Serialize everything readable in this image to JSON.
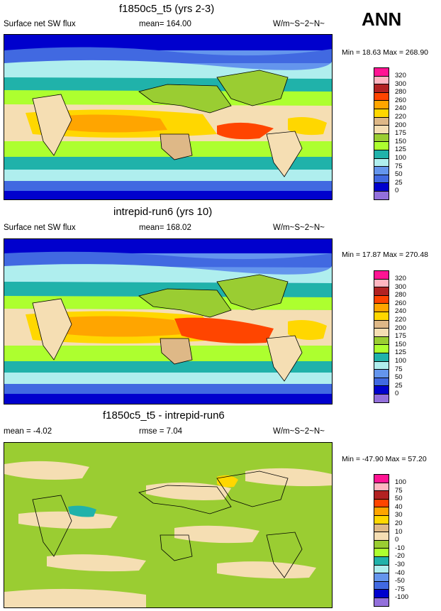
{
  "season": "ANN",
  "panels": [
    {
      "title": "f1850c5_t5 (yrs 2-3)",
      "left_label": "Surface net SW flux",
      "mid_label": "mean= 164.00",
      "units": "W/m~S~2~N~",
      "minmax": "Min = 18.63 Max = 268.90",
      "levels": [
        "320",
        "300",
        "280",
        "260",
        "240",
        "220",
        "200",
        "175",
        "150",
        "125",
        "100",
        "75",
        "50",
        "25",
        "0"
      ]
    },
    {
      "title": "intrepid-run6 (yrs 10)",
      "left_label": "Surface net SW flux",
      "mid_label": "mean= 168.02",
      "units": "W/m~S~2~N~",
      "minmax": "Min = 17.87 Max = 270.48",
      "levels": [
        "320",
        "300",
        "280",
        "260",
        "240",
        "220",
        "200",
        "175",
        "150",
        "125",
        "100",
        "75",
        "50",
        "25",
        "0"
      ]
    },
    {
      "title": "f1850c5_t5 - intrepid-run6",
      "left_label": "mean = -4.02",
      "mid_label": "rmse = 7.04",
      "units": "W/m~S~2~N~",
      "minmax": "Min = -47.90 Max = 57.20",
      "levels": [
        "100",
        "75",
        "50",
        "40",
        "30",
        "20",
        "10",
        "0",
        "-10",
        "-20",
        "-30",
        "-40",
        "-50",
        "-75",
        "-100"
      ]
    }
  ],
  "colors": {
    "scale": [
      "#ff1493",
      "#ffb6c1",
      "#b22222",
      "#ff4500",
      "#ffa500",
      "#ffd700",
      "#deb887",
      "#f5deb3",
      "#9acd32",
      "#adff2f",
      "#20b2aa",
      "#afeeee",
      "#6495ed",
      "#4169e1",
      "#0000cd",
      "#9370db"
    ]
  }
}
